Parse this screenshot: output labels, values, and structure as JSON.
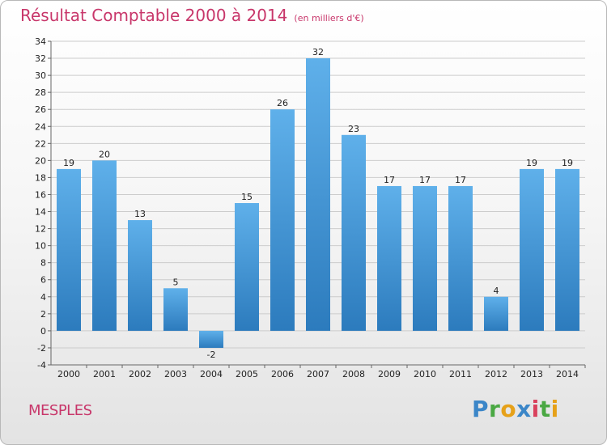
{
  "title": "Résultat Comptable 2000 à 2014",
  "title_unit": "(en milliers d'€)",
  "place_name": "MESPLES",
  "logo_letters": [
    "P",
    "r",
    "o",
    "x",
    "i",
    "t",
    "i"
  ],
  "colors": {
    "title": "#c8366a",
    "bar_top": "#5fb0ea",
    "bar_bottom": "#2c7bbd",
    "grid": "#cccccc",
    "axis": "#666666"
  },
  "chart_data": {
    "type": "bar",
    "categories": [
      "2000",
      "2001",
      "2002",
      "2003",
      "2004",
      "2005",
      "2006",
      "2007",
      "2008",
      "2009",
      "2010",
      "2011",
      "2012",
      "2013",
      "2014"
    ],
    "values": [
      19,
      20,
      13,
      5,
      -2,
      15,
      26,
      32,
      23,
      17,
      17,
      17,
      4,
      19,
      19
    ],
    "ylim": [
      -4,
      34
    ],
    "yticks": [
      -4,
      -2,
      0,
      2,
      4,
      6,
      8,
      10,
      12,
      14,
      16,
      18,
      20,
      22,
      24,
      26,
      28,
      30,
      32,
      34
    ],
    "grid": true,
    "data_labels": true
  }
}
